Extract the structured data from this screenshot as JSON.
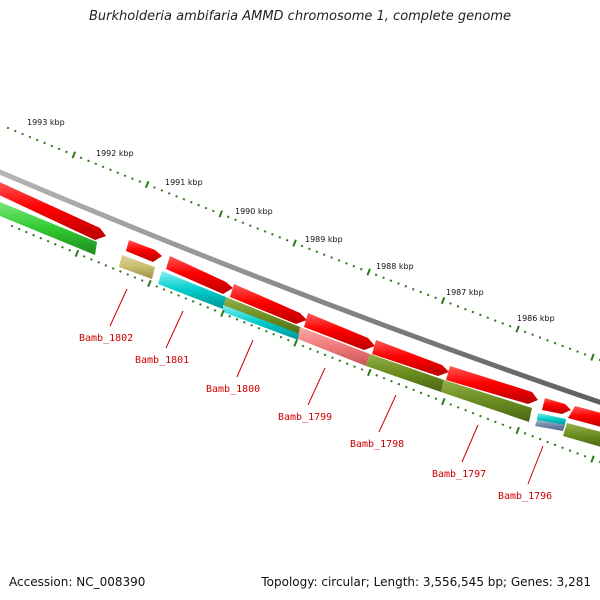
{
  "title": "Burkholderia ambifaria AMMD chromosome 1, complete genome",
  "footer": {
    "accession": "Accession: NC_008390",
    "summary": "Topology: circular; Length: 3,556,545 bp; Genes: 3,281"
  },
  "colors": {
    "backbone": "#8c8c8c",
    "cds_forward": "#ff0000",
    "cds_green": "#33cc33",
    "cds_olive": "#6b8c1f",
    "cds_khaki": "#c8bd6e",
    "cds_cyan": "#00cccc",
    "cds_pink": "#f07a7a",
    "cds_blue": "#6f86a8",
    "tick": "#2a7a1a",
    "label": "#cc0000"
  },
  "ruler": [
    {
      "label": "1993 kbp"
    },
    {
      "label": "1992 kbp"
    },
    {
      "label": "1991 kbp"
    },
    {
      "label": "1990 kbp"
    },
    {
      "label": "1989 kbp"
    },
    {
      "label": "1988 kbp"
    },
    {
      "label": "1987 kbp"
    },
    {
      "label": "1986 kbp"
    }
  ],
  "genes": [
    {
      "label": "Bamb_1802"
    },
    {
      "label": "Bamb_1801"
    },
    {
      "label": "Bamb_1800"
    },
    {
      "label": "Bamb_1799"
    },
    {
      "label": "Bamb_1798"
    },
    {
      "label": "Bamb_1797"
    },
    {
      "label": "Bamb_1796"
    }
  ]
}
